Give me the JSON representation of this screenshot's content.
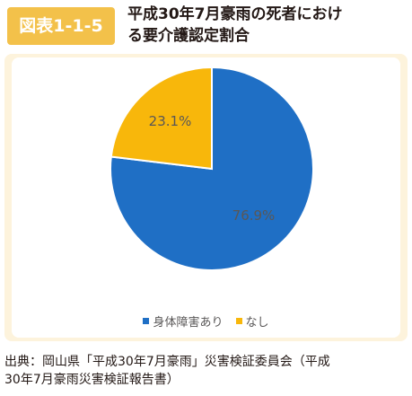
{
  "figure": {
    "label": "図表1-1-5",
    "title_line1": "平成30年7月豪雨の死者におけ",
    "title_line2": "る要介護認定割合"
  },
  "colors": {
    "header_accent": "#f3c14a",
    "panel_bg": "#fdf3dc"
  },
  "chart_data": {
    "type": "pie",
    "categories": [
      "身体障害あり",
      "なし"
    ],
    "values": [
      76.9,
      23.1
    ],
    "data_labels": [
      "76.9%",
      "23.1%"
    ],
    "colors": [
      "#1f6fc5",
      "#f8b70b"
    ],
    "start_angle_deg": 0,
    "direction": "clockwise",
    "legend_position": "bottom"
  },
  "source": {
    "line1": "出典：岡山県「平成30年7月豪雨」災害検証委員会（平成",
    "line2": "30年7月豪雨災害検証報告書）"
  }
}
